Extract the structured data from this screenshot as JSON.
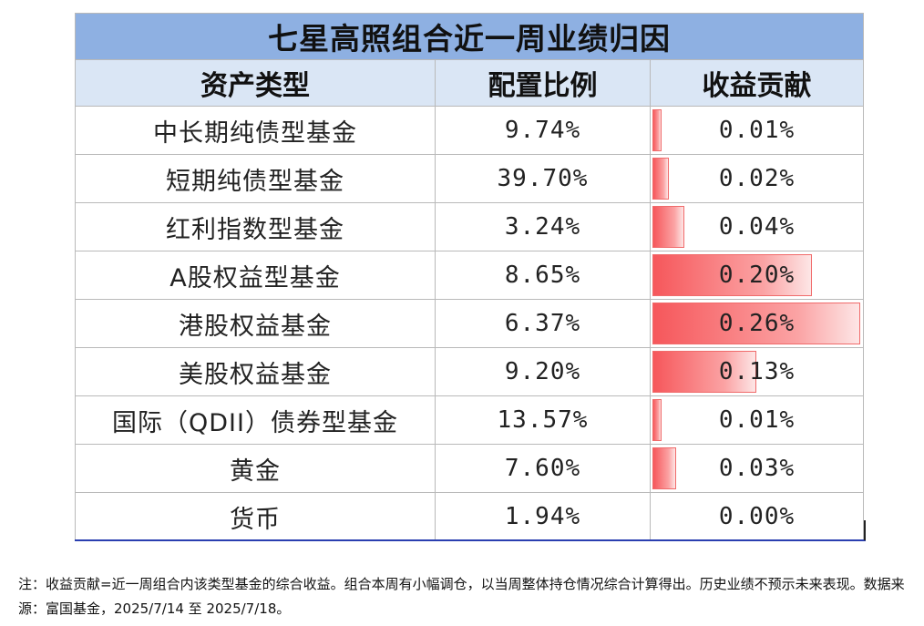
{
  "title": "七星高照组合近一周业绩归因",
  "headers": {
    "asset_type": "资产类型",
    "allocation": "配置比例",
    "contribution": "收益贡献"
  },
  "rows": [
    {
      "asset": "中长期纯债型基金",
      "allocation": "9.74%",
      "contribution": "0.01%",
      "contribution_value": 0.01
    },
    {
      "asset": "短期纯债型基金",
      "allocation": "39.70%",
      "contribution": "0.02%",
      "contribution_value": 0.02
    },
    {
      "asset": "红利指数型基金",
      "allocation": "3.24%",
      "contribution": "0.04%",
      "contribution_value": 0.04
    },
    {
      "asset": "A股权益型基金",
      "allocation": "8.65%",
      "contribution": "0.20%",
      "contribution_value": 0.2
    },
    {
      "asset": "港股权益基金",
      "allocation": "6.37%",
      "contribution": "0.26%",
      "contribution_value": 0.26
    },
    {
      "asset": "美股权益基金",
      "allocation": "9.20%",
      "contribution": "0.13%",
      "contribution_value": 0.13
    },
    {
      "asset": "国际（QDII）债券型基金",
      "allocation": "13.57%",
      "contribution": "0.01%",
      "contribution_value": 0.01
    },
    {
      "asset": "黄金",
      "allocation": "7.60%",
      "contribution": "0.03%",
      "contribution_value": 0.03
    },
    {
      "asset": "货币",
      "allocation": "1.94%",
      "contribution": "0.00%",
      "contribution_value": 0.0
    }
  ],
  "bar_color": "#f6575b",
  "note": "注：收益贡献=近一周组合内该类型基金的综合收益。组合本周有小幅调仓，以当周整体持仓情况综合计算得出。历史业绩不预示未来表现。数据来源：富国基金，2025/7/14 至 2025/7/18。"
}
